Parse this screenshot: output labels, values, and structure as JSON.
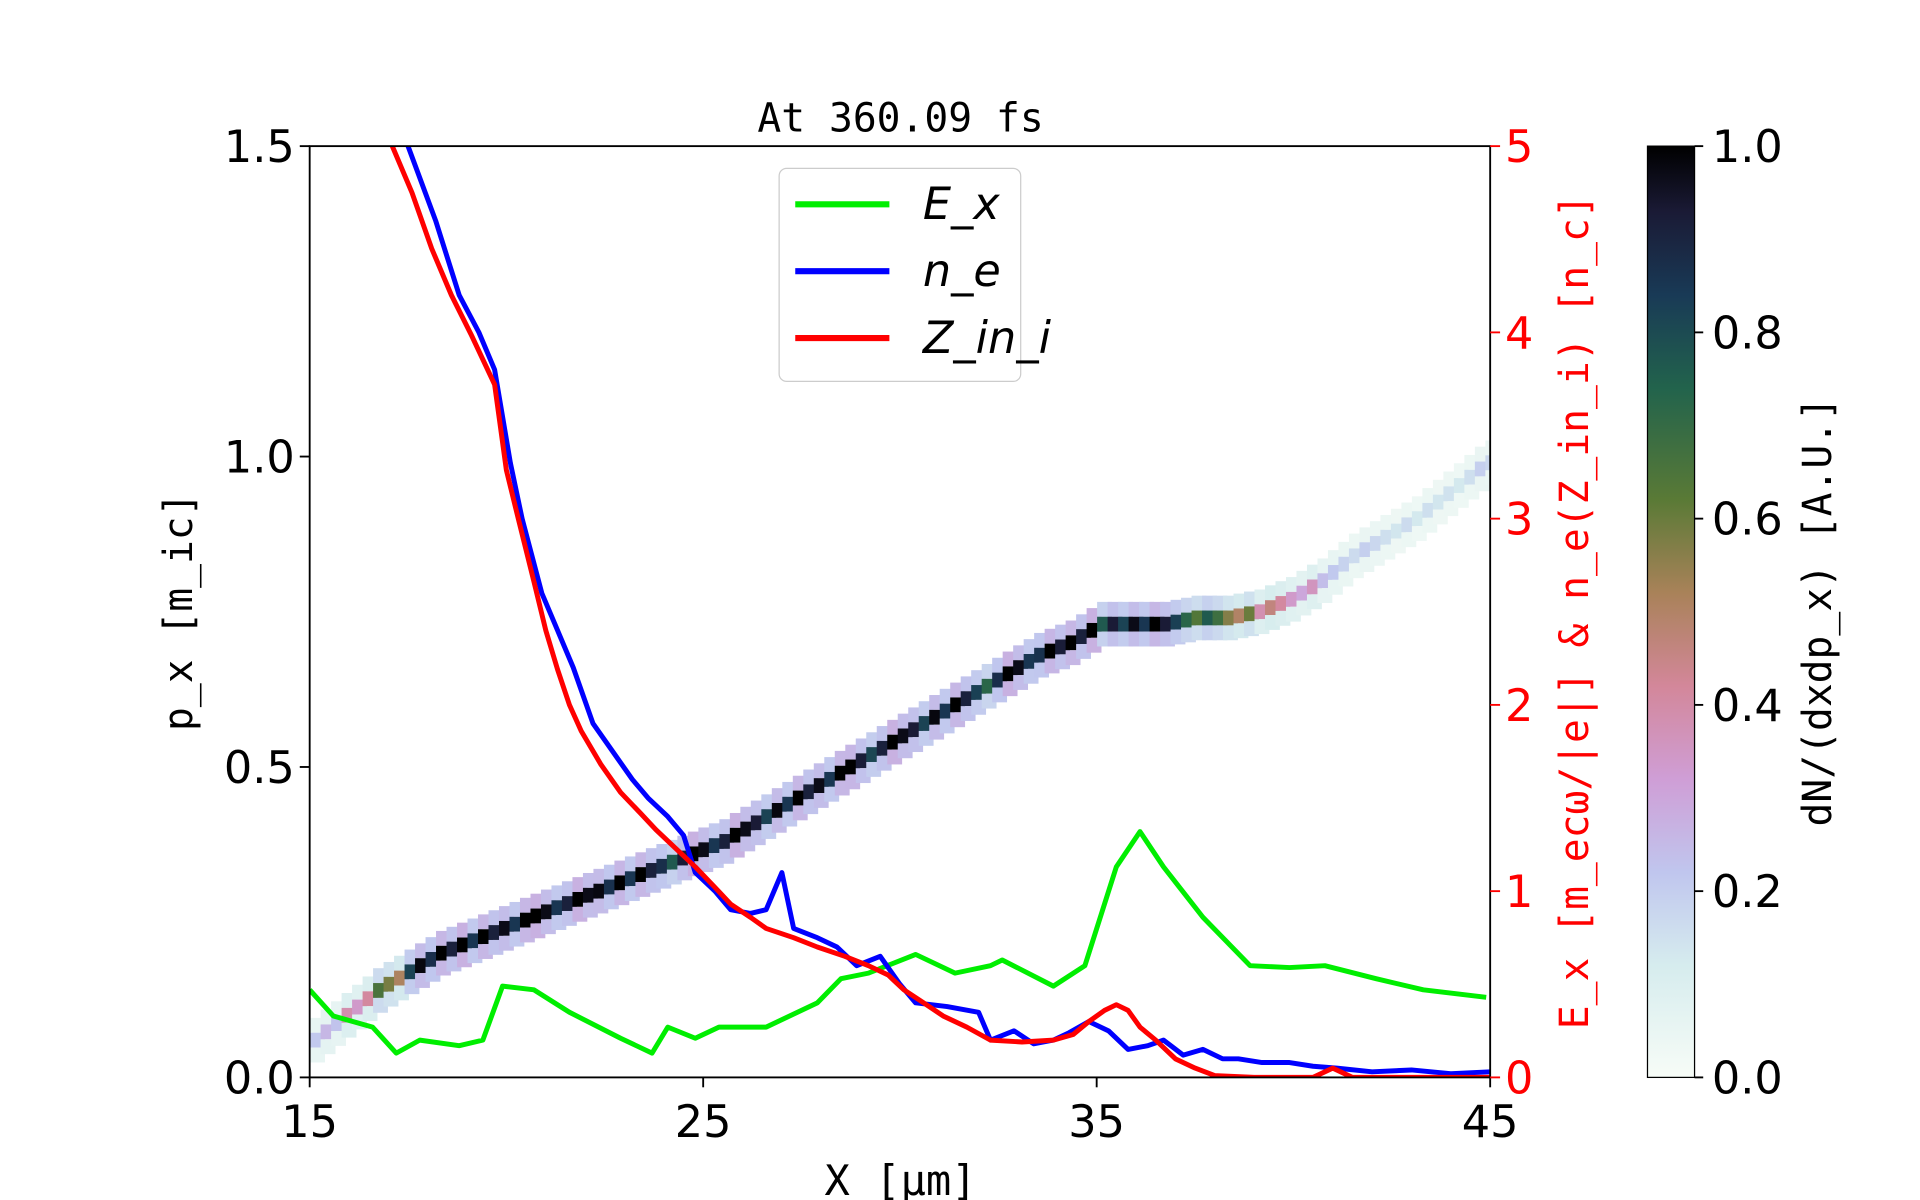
{
  "chart_data": {
    "type": "line+heatmap",
    "title": "At 360.09 fs",
    "xlabel": "X [μm]",
    "ylabel_left": "p_x [m_ic]",
    "ylabel_right": "E_x [m_ecω/|e|] & n_e(Z_in_i) [n_c]",
    "colorbar_label": "dN/(dxdp_x) [A.U.]",
    "xlim": [
      15,
      45
    ],
    "ylim_left": [
      0,
      1.5
    ],
    "ylim_right": [
      0,
      5
    ],
    "clim": [
      0,
      1
    ],
    "xticks": [
      "15",
      "25",
      "35",
      "45"
    ],
    "yticks_left": [
      "0.0",
      "0.5",
      "1.0",
      "1.5"
    ],
    "yticks_right": [
      "0",
      "1",
      "2",
      "3",
      "4",
      "5"
    ],
    "cticks": [
      "0.0",
      "0.2",
      "0.4",
      "0.6",
      "0.8",
      "1.0"
    ],
    "grid": false,
    "legend_position": "top-center",
    "colors": {
      "Ex": "#00ee00",
      "ne": "#0000ff",
      "Zn": "#ff0000",
      "right_axis": "#ff0000"
    },
    "series": [
      {
        "name": "E_x",
        "axis": "right",
        "x": [
          15,
          15.6,
          16.6,
          17.2,
          17.8,
          18.8,
          19.4,
          19.9,
          20.7,
          21.6,
          22.9,
          23.7,
          24.1,
          24.8,
          25.4,
          26.6,
          27.9,
          28.5,
          29.2,
          30.4,
          31.4,
          32.3,
          32.6,
          33.9,
          34.7,
          35.5,
          36.1,
          36.7,
          37.7,
          38.9,
          39.9,
          40.8,
          42.1,
          43.3,
          44.9
        ],
        "y": [
          0.47,
          0.33,
          0.27,
          0.13,
          0.2,
          0.17,
          0.2,
          0.49,
          0.47,
          0.35,
          0.21,
          0.13,
          0.27,
          0.21,
          0.27,
          0.27,
          0.4,
          0.53,
          0.56,
          0.66,
          0.56,
          0.6,
          0.63,
          0.49,
          0.6,
          1.13,
          1.32,
          1.13,
          0.86,
          0.6,
          0.59,
          0.6,
          0.53,
          0.47,
          0.43
        ]
      },
      {
        "name": "n_e",
        "axis": "right",
        "x": [
          17.5,
          18.2,
          18.8,
          19.3,
          19.7,
          20.1,
          20.4,
          20.9,
          21.3,
          21.7,
          22.2,
          22.7,
          23.2,
          23.6,
          24.1,
          24.5,
          24.8,
          25.3,
          25.7,
          26.2,
          26.6,
          27.0,
          27.3,
          27.9,
          28.4,
          28.9,
          29.5,
          30.0,
          30.4,
          31.2,
          32.0,
          32.3,
          32.9,
          33.4,
          33.9,
          34.3,
          34.8,
          35.3,
          35.8,
          36.3,
          36.7,
          37.2,
          37.7,
          38.2,
          38.6,
          39.2,
          39.9,
          40.5,
          41.1,
          42,
          43,
          44,
          45
        ],
        "y": [
          5.0,
          4.6,
          4.2,
          4.0,
          3.8,
          3.3,
          3.0,
          2.6,
          2.4,
          2.2,
          1.9,
          1.75,
          1.6,
          1.5,
          1.4,
          1.3,
          1.1,
          1.0,
          0.9,
          0.88,
          0.9,
          1.1,
          0.8,
          0.75,
          0.7,
          0.6,
          0.65,
          0.5,
          0.4,
          0.38,
          0.35,
          0.2,
          0.25,
          0.18,
          0.2,
          0.24,
          0.3,
          0.25,
          0.15,
          0.17,
          0.2,
          0.12,
          0.15,
          0.1,
          0.1,
          0.08,
          0.08,
          0.06,
          0.05,
          0.03,
          0.04,
          0.02,
          0.03
        ]
      },
      {
        "name": "Z_in_i",
        "axis": "right",
        "x": [
          17.1,
          17.6,
          18.1,
          18.6,
          19.1,
          19.7,
          20.0,
          20.3,
          20.7,
          21.0,
          21.3,
          21.6,
          21.9,
          22.4,
          22.9,
          23.4,
          23.8,
          24.3,
          24.8,
          25.3,
          25.7,
          26.2,
          26.6,
          27.3,
          27.9,
          28.6,
          29.2,
          29.7,
          30.1,
          30.6,
          31.1,
          31.7,
          32.3,
          33.1,
          33.9,
          34.4,
          34.8,
          35.2,
          35.5,
          35.8,
          36.1,
          36.5,
          37.0,
          37.5,
          38.0,
          39,
          40.5,
          41.0,
          41.5,
          43,
          45
        ],
        "y": [
          5.0,
          4.75,
          4.45,
          4.2,
          3.99,
          3.72,
          3.26,
          3.0,
          2.66,
          2.4,
          2.19,
          2.0,
          1.86,
          1.68,
          1.53,
          1.42,
          1.33,
          1.23,
          1.13,
          1.02,
          0.93,
          0.86,
          0.8,
          0.75,
          0.7,
          0.65,
          0.6,
          0.55,
          0.47,
          0.4,
          0.33,
          0.27,
          0.2,
          0.19,
          0.2,
          0.23,
          0.3,
          0.36,
          0.39,
          0.36,
          0.27,
          0.2,
          0.1,
          0.05,
          0.01,
          0.0,
          0.0,
          0.05,
          0.0,
          0.0,
          0.0
        ]
      }
    ],
    "phase_space": [
      [
        15.2,
        0.06,
        0.25
      ],
      [
        16,
        0.1,
        0.4
      ],
      [
        16.8,
        0.14,
        0.6
      ],
      [
        17.6,
        0.17,
        0.9
      ],
      [
        18.4,
        0.2,
        1
      ],
      [
        19.2,
        0.22,
        1
      ],
      [
        20,
        0.24,
        1
      ],
      [
        20.8,
        0.26,
        1
      ],
      [
        21.6,
        0.28,
        1
      ],
      [
        22.4,
        0.3,
        0.95
      ],
      [
        23.2,
        0.32,
        1
      ],
      [
        24,
        0.34,
        0.9
      ],
      [
        24.8,
        0.36,
        1
      ],
      [
        25.6,
        0.38,
        1
      ],
      [
        26.4,
        0.41,
        0.9
      ],
      [
        27.2,
        0.44,
        1
      ],
      [
        28,
        0.47,
        1
      ],
      [
        28.8,
        0.5,
        0.95
      ],
      [
        29.6,
        0.53,
        1
      ],
      [
        30.4,
        0.56,
        0.9
      ],
      [
        31.2,
        0.59,
        1
      ],
      [
        32,
        0.62,
        0.85
      ],
      [
        32.8,
        0.65,
        1
      ],
      [
        33.6,
        0.68,
        0.95
      ],
      [
        34.4,
        0.7,
        1
      ],
      [
        35.2,
        0.73,
        0.9
      ],
      [
        36,
        0.73,
        1
      ],
      [
        36.8,
        0.73,
        0.85
      ],
      [
        37.6,
        0.74,
        0.7
      ],
      [
        38.4,
        0.74,
        0.55
      ],
      [
        39.2,
        0.75,
        0.45
      ],
      [
        40,
        0.77,
        0.35
      ],
      [
        40.8,
        0.8,
        0.22
      ],
      [
        41.6,
        0.84,
        0.18
      ],
      [
        42.4,
        0.87,
        0.15
      ],
      [
        43.2,
        0.9,
        0.15
      ],
      [
        44,
        0.94,
        0.15
      ],
      [
        44.8,
        0.98,
        0.18
      ]
    ]
  }
}
